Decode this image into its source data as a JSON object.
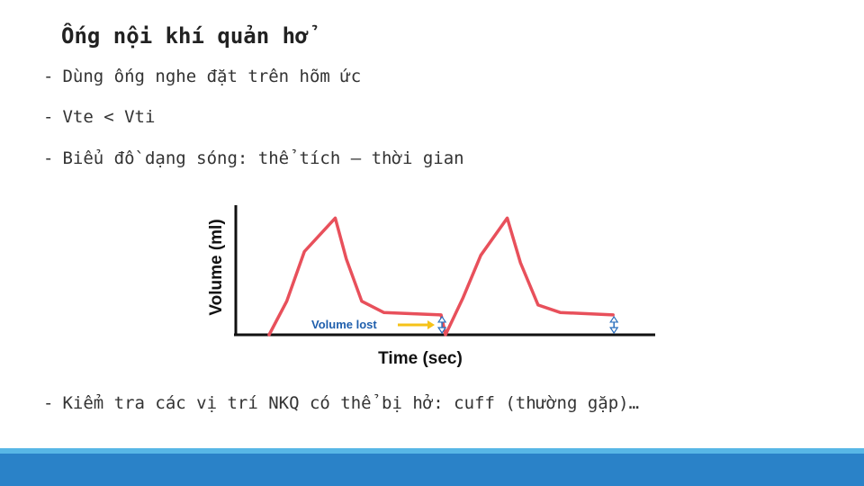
{
  "slide": {
    "title": "Ống nội khí quản hở",
    "bullets": [
      "Dùng ống nghe đặt trên hõm ức",
      "Vte < Vti",
      "Biểu đồ dạng sóng: thể tích – thời gian",
      "Kiểm tra các vị trí NKQ có thể bị hở: cuff (thường gặp)…"
    ],
    "bullet_marker": "-"
  },
  "chart_data": {
    "type": "line",
    "xlabel": "Time (sec)",
    "ylabel": "Volume (ml)",
    "annotation": "Volume lost",
    "series": [
      {
        "values": [
          [
            0,
            0
          ],
          [
            0.4,
            0.27
          ],
          [
            0.8,
            0.67
          ],
          [
            1.5,
            0.94
          ],
          [
            1.75,
            0.61
          ],
          [
            2.1,
            0.27
          ],
          [
            2.6,
            0.18
          ],
          [
            3.9,
            0.16
          ],
          [
            4.0,
            0
          ],
          [
            4.4,
            0.3
          ],
          [
            4.8,
            0.64
          ],
          [
            5.4,
            0.94
          ],
          [
            5.7,
            0.58
          ],
          [
            6.1,
            0.24
          ],
          [
            6.6,
            0.18
          ],
          [
            7.8,
            0.16
          ]
        ]
      }
    ],
    "colors": {
      "line": "#e8505b",
      "arrow": "#f5c218",
      "annotation": "#1f5fad",
      "marker": "#2a6fbd",
      "axis": "#111111"
    }
  }
}
